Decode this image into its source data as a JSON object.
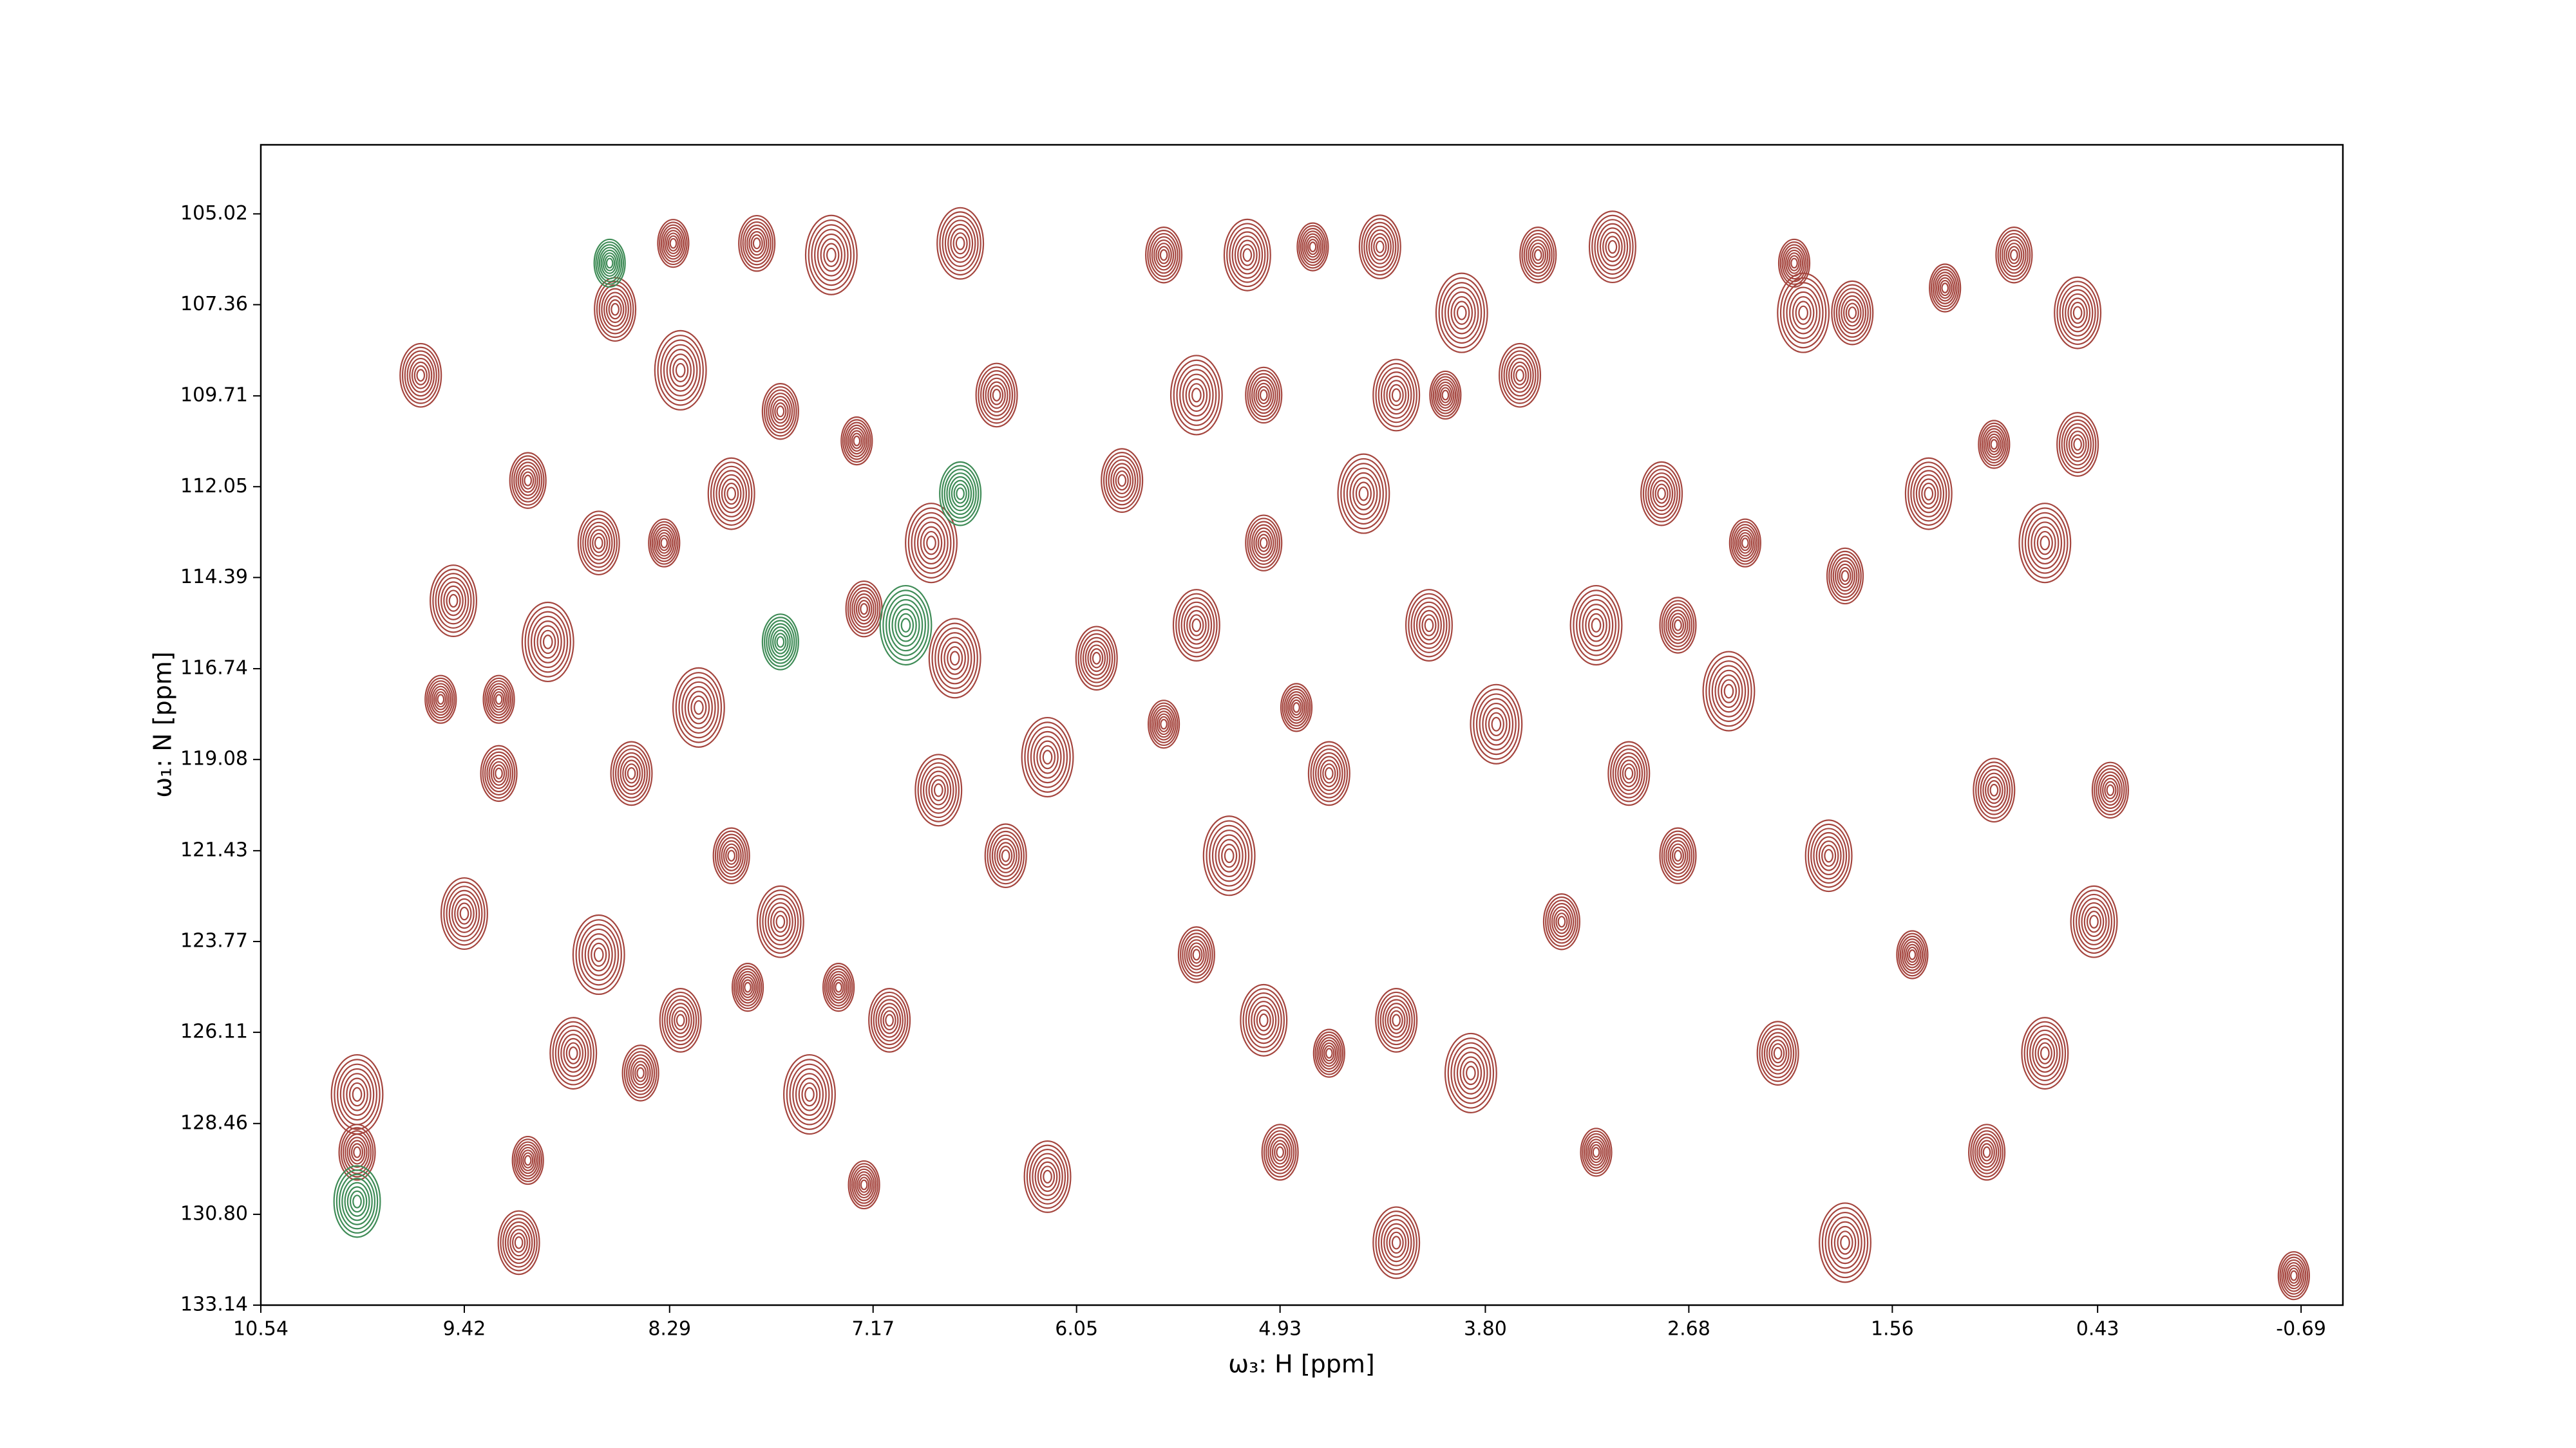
{
  "chart_data": {
    "type": "contour",
    "xlabel": "ω₃: H [ppm]",
    "ylabel": "ω₁: N [ppm]",
    "xlim": [
      10.54,
      -0.92
    ],
    "ylim": [
      103.24,
      133.14
    ],
    "xticks": [
      10.54,
      9.42,
      8.29,
      7.17,
      6.05,
      4.93,
      {
        "value": 3.8,
        "label": "3.80"
      },
      2.68,
      1.56,
      0.43,
      -0.69
    ],
    "yticks": [
      105.02,
      107.36,
      109.71,
      112.05,
      114.39,
      116.74,
      119.08,
      121.43,
      123.77,
      126.11,
      128.46,
      {
        "value": 130.8,
        "label": "130.80"
      },
      133.14
    ],
    "contour_levels": 8,
    "series": [
      {
        "color": "#a5463f",
        "x": [
          8.27,
          8.59,
          8.23,
          9.07,
          9.48,
          9.55,
          9.66,
          7.4,
          7.81,
          6.69,
          7.26,
          6.49,
          6.85,
          7.22,
          6.81,
          7.36,
          7.08,
          7.52,
          8.45,
          8.82,
          9.07,
          9.12,
          10.01,
          10.01,
          6.21,
          7.22,
          6.44,
          6.72,
          7.68,
          7.95,
          8.32,
          8.68,
          8.96,
          9.23,
          9.42,
          9.23,
          8.5,
          8.13,
          7.95,
          7.68,
          7.86,
          8.23,
          8.68,
          5.57,
          5.11,
          4.75,
          4.38,
          3.93,
          3.51,
          3.1,
          2.1,
          1.78,
          2.05,
          0.89,
          0.54,
          1.27,
          5.8,
          5.39,
          5.02,
          4.29,
          4.02,
          3.61,
          4.47,
          5.02,
          5.39,
          4.84,
          4.66,
          5.21,
          5.39,
          5.02,
          4.66,
          4.29,
          3.88,
          4.93,
          4.29,
          3.19,
          2.19,
          1.82,
          1.04,
          0.72,
          -0.65,
          3.01,
          2.46,
          1.82,
          1.36,
          1.0,
          0.54,
          0.72,
          0.36,
          0.45,
          2.37,
          2.83,
          3.19,
          2.74,
          1.91,
          1.45,
          1.0,
          3.74,
          3.38,
          4.11,
          5.57,
          5.94,
          6.21,
          2.74
        ],
        "y": [
          105.78,
          107.48,
          109.05,
          111.89,
          114.99,
          117.53,
          109.18,
          106.08,
          105.78,
          105.78,
          110.87,
          109.69,
          113.5,
          115.2,
          119.87,
          124.95,
          125.8,
          127.71,
          127.16,
          126.65,
          129.41,
          131.53,
          127.71,
          129.2,
          129.83,
          130.04,
          121.56,
          116.47,
          110.11,
          112.23,
          113.5,
          113.5,
          116.05,
          119.44,
          123.05,
          117.53,
          119.44,
          117.74,
          121.56,
          123.26,
          124.95,
          125.8,
          124.11,
          106.08,
          106.08,
          105.87,
          105.87,
          107.57,
          106.08,
          105.87,
          106.29,
          107.57,
          107.57,
          106.08,
          107.57,
          106.93,
          111.89,
          109.69,
          109.69,
          109.69,
          109.69,
          109.18,
          112.23,
          113.5,
          115.62,
          117.74,
          119.44,
          121.56,
          124.11,
          125.8,
          126.65,
          125.8,
          127.16,
          129.2,
          131.53,
          129.2,
          126.65,
          131.53,
          129.2,
          126.65,
          132.38,
          119.44,
          117.32,
          114.35,
          112.23,
          110.96,
          110.96,
          113.5,
          119.87,
          123.26,
          113.5,
          112.23,
          115.62,
          121.56,
          121.56,
          124.11,
          119.87,
          118.17,
          123.26,
          115.62,
          118.17,
          116.47,
          119.02,
          115.62
        ]
      },
      {
        "color": "#3f8c57",
        "x": [
          8.62,
          6.69,
          6.99,
          7.68,
          10.01
        ],
        "y": [
          106.29,
          112.23,
          115.62,
          116.05,
          130.47
        ]
      }
    ]
  }
}
